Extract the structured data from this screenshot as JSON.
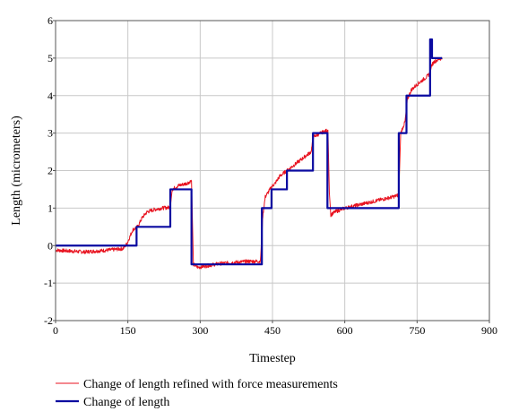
{
  "chart_data": {
    "type": "line",
    "xlabel": "Timestep",
    "ylabel": "Length (micrometers)",
    "xlim": [
      0,
      900
    ],
    "ylim": [
      -2,
      6
    ],
    "xticks": [
      0,
      150,
      300,
      450,
      600,
      750,
      900
    ],
    "yticks": [
      -2,
      -1,
      0,
      1,
      2,
      3,
      4,
      5,
      6
    ],
    "grid": true,
    "legend_position": "bottom-left",
    "series": [
      {
        "name": "Change of length refined with force measurements",
        "color": "#e8121f",
        "noisy": true,
        "points": [
          [
            0,
            -0.12
          ],
          [
            60,
            -0.17
          ],
          [
            110,
            -0.12
          ],
          [
            140,
            -0.08
          ],
          [
            148,
            0.05
          ],
          [
            160,
            0.42
          ],
          [
            170,
            0.5
          ],
          [
            180,
            0.75
          ],
          [
            190,
            0.9
          ],
          [
            205,
            0.96
          ],
          [
            220,
            1.0
          ],
          [
            238,
            1.02
          ],
          [
            242,
            1.5
          ],
          [
            255,
            1.6
          ],
          [
            270,
            1.65
          ],
          [
            282,
            1.72
          ],
          [
            286,
            -0.5
          ],
          [
            295,
            -0.58
          ],
          [
            340,
            -0.48
          ],
          [
            400,
            -0.42
          ],
          [
            425,
            -0.42
          ],
          [
            430,
            0.8
          ],
          [
            435,
            1.3
          ],
          [
            445,
            1.5
          ],
          [
            450,
            1.6
          ],
          [
            455,
            1.65
          ],
          [
            460,
            1.75
          ],
          [
            465,
            1.85
          ],
          [
            475,
            1.95
          ],
          [
            490,
            2.1
          ],
          [
            510,
            2.3
          ],
          [
            530,
            2.5
          ],
          [
            535,
            2.9
          ],
          [
            550,
            3.0
          ],
          [
            565,
            3.08
          ],
          [
            568,
            1.4
          ],
          [
            571,
            0.82
          ],
          [
            580,
            0.9
          ],
          [
            600,
            1.0
          ],
          [
            650,
            1.15
          ],
          [
            700,
            1.3
          ],
          [
            712,
            1.35
          ],
          [
            716,
            3.0
          ],
          [
            725,
            3.3
          ],
          [
            730,
            3.9
          ],
          [
            738,
            4.15
          ],
          [
            750,
            4.3
          ],
          [
            770,
            4.5
          ],
          [
            777,
            4.6
          ],
          [
            780,
            4.8
          ],
          [
            785,
            4.9
          ],
          [
            795,
            4.97
          ],
          [
            802,
            5.0
          ]
        ]
      },
      {
        "name": "Change of length",
        "color": "#0a0aa0",
        "noisy": false,
        "points": [
          [
            0,
            0
          ],
          [
            168,
            0
          ],
          [
            168,
            0.5
          ],
          [
            238,
            0.5
          ],
          [
            238,
            1.5
          ],
          [
            282,
            1.5
          ],
          [
            282,
            -0.5
          ],
          [
            428,
            -0.5
          ],
          [
            428,
            1.0
          ],
          [
            448,
            1.0
          ],
          [
            448,
            1.5
          ],
          [
            480,
            1.5
          ],
          [
            480,
            2.0
          ],
          [
            534,
            2.0
          ],
          [
            534,
            3.0
          ],
          [
            564,
            3.0
          ],
          [
            564,
            1.0
          ],
          [
            712,
            1.0
          ],
          [
            712,
            3.0
          ],
          [
            728,
            3.0
          ],
          [
            728,
            4.0
          ],
          [
            777,
            4.0
          ],
          [
            777,
            5.5
          ],
          [
            781,
            5.5
          ],
          [
            781,
            5.0
          ],
          [
            802,
            5.0
          ]
        ]
      }
    ]
  }
}
